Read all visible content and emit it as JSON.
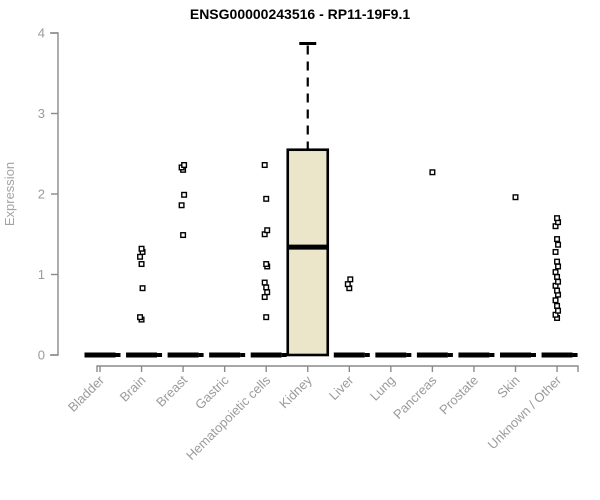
{
  "chart_data": {
    "type": "boxplot",
    "title": "ENSG00000243516 - RP11-19F9.1",
    "ylabel": "Expression",
    "ylim": [
      0,
      4
    ],
    "yticks": [
      0,
      1,
      2,
      3,
      4
    ],
    "grid": false,
    "categories": [
      "Bladder",
      "Brain",
      "Breast",
      "Gastric",
      "Hematopoietic cells",
      "Kidney",
      "Liver",
      "Lung",
      "Pancreas",
      "Prostate",
      "Skin",
      "Unknown / Other"
    ],
    "boxes": [
      {
        "category": "Bladder",
        "q1": 0,
        "median": 0,
        "q3": 0,
        "whisker_low": 0,
        "whisker_high": 0,
        "outliers": []
      },
      {
        "category": "Brain",
        "q1": 0,
        "median": 0,
        "q3": 0,
        "whisker_low": 0,
        "whisker_high": 0,
        "outliers": [
          0.44,
          0.47,
          0.83,
          1.13,
          1.22,
          1.28,
          1.32
        ]
      },
      {
        "category": "Breast",
        "q1": 0,
        "median": 0,
        "q3": 0,
        "whisker_low": 0,
        "whisker_high": 0,
        "outliers": [
          1.49,
          1.86,
          1.99,
          2.3,
          2.33,
          2.36
        ]
      },
      {
        "category": "Gastric",
        "q1": 0,
        "median": 0,
        "q3": 0,
        "whisker_low": 0,
        "whisker_high": 0,
        "outliers": []
      },
      {
        "category": "Hematopoietic cells",
        "q1": 0,
        "median": 0,
        "q3": 0,
        "whisker_low": 0,
        "whisker_high": 0,
        "outliers": [
          0.47,
          0.72,
          0.78,
          0.84,
          0.9,
          1.1,
          1.13,
          1.5,
          1.55,
          1.94,
          2.36
        ]
      },
      {
        "category": "Kidney",
        "q1": 0,
        "median": 1.34,
        "q3": 2.55,
        "whisker_low": 0,
        "whisker_high": 3.87,
        "outliers": []
      },
      {
        "category": "Liver",
        "q1": 0,
        "median": 0,
        "q3": 0,
        "whisker_low": 0,
        "whisker_high": 0,
        "outliers": [
          0.83,
          0.88,
          0.94
        ]
      },
      {
        "category": "Lung",
        "q1": 0,
        "median": 0,
        "q3": 0,
        "whisker_low": 0,
        "whisker_high": 0,
        "outliers": []
      },
      {
        "category": "Pancreas",
        "q1": 0,
        "median": 0,
        "q3": 0,
        "whisker_low": 0,
        "whisker_high": 0,
        "outliers": [
          2.27
        ]
      },
      {
        "category": "Prostate",
        "q1": 0,
        "median": 0,
        "q3": 0,
        "whisker_low": 0,
        "whisker_high": 0,
        "outliers": []
      },
      {
        "category": "Skin",
        "q1": 0,
        "median": 0,
        "q3": 0,
        "whisker_low": 0,
        "whisker_high": 0,
        "outliers": [
          1.96
        ]
      },
      {
        "category": "Unknown / Other",
        "q1": 0,
        "median": 0,
        "q3": 0,
        "whisker_low": 0,
        "whisker_high": 0,
        "outliers": [
          0.46,
          0.5,
          0.55,
          0.61,
          0.68,
          0.75,
          0.8,
          0.86,
          0.91,
          0.97,
          1.03,
          1.1,
          1.16,
          1.28,
          1.37,
          1.44,
          1.6,
          1.65,
          1.7
        ]
      }
    ],
    "colors": {
      "box_fill": "#ebe5c9",
      "box_stroke": "#000000",
      "axis": "#8a8a8a",
      "tick_label": "#9b9b9b",
      "ylabel_color": "#a3a3a3",
      "title_color": "#000000",
      "outlier_fill": "#ffffff",
      "background": "#ffffff"
    }
  }
}
